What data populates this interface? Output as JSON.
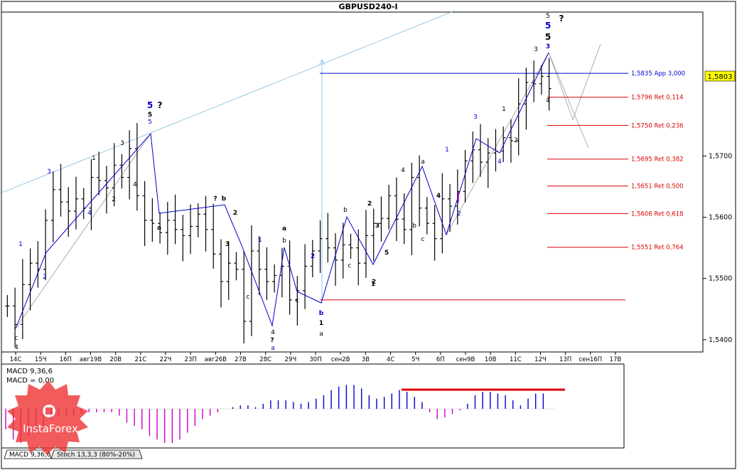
{
  "window_title": "GBPUSD240-I",
  "current_price_label": "1,5803",
  "colors": {
    "bull_bar": "#000000",
    "wave_blue": "#0000cc",
    "fib_red": "#dd0000",
    "channel": "#7ab8e0",
    "grey_line": "#999999",
    "macd_pos": "#0000cc",
    "macd_neg": "#cc00cc",
    "current_price_bg": "#ffff00"
  },
  "chart_data": {
    "type": "candlestick-ohlc",
    "symbol": "GBPUSD",
    "timeframe": "H4",
    "ylim": [
      1.538,
      1.5935
    ],
    "y_ticks": [
      "1,5400",
      "1,5500",
      "1,5600",
      "1,5700"
    ],
    "y_tick_values": [
      1.54,
      1.55,
      1.56,
      1.57
    ],
    "x_tick_labels": [
      "14С",
      "15Ч",
      "16П",
      "авг19В",
      "20В",
      "21С",
      "22Ч",
      "23П",
      "авг26В",
      "27В",
      "28С",
      "29Ч",
      "30П",
      "сен2В",
      "3В",
      "4С",
      "5Ч",
      "6П",
      "сен9В",
      "10В",
      "11С",
      "12Ч",
      "13П",
      "сен16П",
      "17В"
    ],
    "price_path": [
      1.5455,
      1.5425,
      1.549,
      1.5525,
      1.5515,
      1.5595,
      1.5645,
      1.5625,
      1.561,
      1.563,
      1.5615,
      1.5665,
      1.566,
      1.5648,
      1.5685,
      1.5665,
      1.5712,
      1.5635,
      1.5595,
      1.559,
      1.5575,
      1.5595,
      1.558,
      1.557,
      1.5585,
      1.5605,
      1.558,
      1.554,
      1.5495,
      1.5525,
      1.5515,
      1.543,
      1.5545,
      1.5515,
      1.5495,
      1.5505,
      1.552,
      1.5465,
      1.548,
      1.552,
      1.5545,
      1.5565,
      1.555,
      1.553,
      1.5555,
      1.555,
      1.5525,
      1.557,
      1.559,
      1.5598,
      1.5635,
      1.5597,
      1.558,
      1.5665,
      1.5615,
      1.559,
      1.5565,
      1.563,
      1.5618,
      1.5642,
      1.5692,
      1.571,
      1.569,
      1.5705,
      1.5708,
      1.573,
      1.5725,
      1.5785,
      1.582,
      1.5818,
      1.583,
      1.581
    ],
    "current_price": 1.5803,
    "fib_levels": [
      {
        "label": "1,5835 App 3,000",
        "value": 1.5835
      },
      {
        "label": "1,5796 Ret 0,114",
        "value": 1.5796
      },
      {
        "label": "1,5750 Ret 0,236",
        "value": 1.575
      },
      {
        "label": "1,5695 Ret 0,382",
        "value": 1.5695
      },
      {
        "label": "1,5651 Ret 0,500",
        "value": 1.5651
      },
      {
        "label": "1,5606 Ret 0,618",
        "value": 1.5606
      },
      {
        "label": "1,5551 Ret 0,764",
        "value": 1.5551
      }
    ],
    "support_level": 1.5465,
    "wave_labels": [
      {
        "text": "1",
        "color": "blue"
      },
      {
        "text": "2",
        "color": "blue"
      },
      {
        "text": "3",
        "color": "blue"
      },
      {
        "text": "4",
        "color": "blue"
      },
      {
        "text": "5",
        "color": "blue"
      },
      {
        "text": "?",
        "color": "black"
      },
      {
        "text": "5",
        "color": "black"
      },
      {
        "text": "5",
        "color": "blue"
      },
      {
        "text": "1",
        "color": "black"
      },
      {
        "text": "2",
        "color": "black"
      },
      {
        "text": "3",
        "color": "black"
      },
      {
        "text": "4",
        "color": "black"
      },
      {
        "text": "c",
        "color": "black"
      },
      {
        "text": "4",
        "color": "black"
      },
      {
        "text": "a",
        "color": "black"
      },
      {
        "text": "?",
        "color": "black"
      },
      {
        "text": "b",
        "color": "black"
      },
      {
        "text": "2",
        "color": "black"
      },
      {
        "text": "3",
        "color": "black"
      },
      {
        "text": "c",
        "color": "black"
      },
      {
        "text": "4",
        "color": "black"
      },
      {
        "text": "?",
        "color": "black"
      },
      {
        "text": "a",
        "color": "blue"
      },
      {
        "text": "1",
        "color": "blue"
      },
      {
        "text": "a",
        "color": "black"
      },
      {
        "text": "b",
        "color": "black"
      },
      {
        "text": "c",
        "color": "black"
      },
      {
        "text": "2",
        "color": "blue"
      },
      {
        "text": "b",
        "color": "blue"
      },
      {
        "text": "1",
        "color": "black"
      },
      {
        "text": "a",
        "color": "black"
      },
      {
        "text": "b",
        "color": "black"
      },
      {
        "text": "c",
        "color": "black"
      },
      {
        "text": "2",
        "color": "black"
      },
      {
        "text": "1",
        "color": "black"
      },
      {
        "text": "2",
        "color": "black"
      },
      {
        "text": "3",
        "color": "black"
      },
      {
        "text": "5",
        "color": "black"
      },
      {
        "text": "4",
        "color": "black"
      },
      {
        "text": "a",
        "color": "black"
      },
      {
        "text": "b",
        "color": "black"
      },
      {
        "text": "c",
        "color": "black"
      },
      {
        "text": "4",
        "color": "black"
      },
      {
        "text": "1",
        "color": "blue"
      },
      {
        "text": "2",
        "color": "blue"
      },
      {
        "text": "3",
        "color": "blue"
      },
      {
        "text": "4",
        "color": "blue"
      },
      {
        "text": "1",
        "color": "black"
      },
      {
        "text": "2",
        "color": "black"
      },
      {
        "text": "3",
        "color": "black"
      },
      {
        "text": "4",
        "color": "black"
      },
      {
        "text": "5",
        "color": "black"
      },
      {
        "text": "5",
        "color": "blue"
      },
      {
        "text": "5",
        "color": "black"
      },
      {
        "text": "3",
        "color": "blue"
      },
      {
        "text": "?",
        "color": "black"
      }
    ]
  },
  "indicator": {
    "macd_label": "MACD 9,36,6",
    "macd_value": "MACD = 0,00",
    "macd_histogram": [
      -0.6,
      -0.9,
      -1.0,
      -0.8,
      -0.7,
      -0.5,
      -0.3,
      -0.2,
      -0.2,
      -0.2,
      -0.15,
      -0.1,
      -0.1,
      -0.1,
      -0.1,
      -0.2,
      -0.4,
      -0.5,
      -0.6,
      -0.8,
      -0.9,
      -1.0,
      -1.0,
      -0.9,
      -0.7,
      -0.5,
      -0.3,
      -0.2,
      -0.1,
      0.0,
      0.05,
      0.1,
      0.1,
      0.05,
      0.15,
      0.25,
      0.25,
      0.25,
      0.2,
      0.15,
      0.2,
      0.3,
      0.4,
      0.55,
      0.65,
      0.7,
      0.7,
      0.6,
      0.4,
      0.3,
      0.35,
      0.45,
      0.55,
      0.5,
      0.35,
      0.2,
      -0.1,
      -0.3,
      -0.25,
      -0.15,
      -0.05,
      0.15,
      0.4,
      0.5,
      0.5,
      0.45,
      0.4,
      0.25,
      0.1,
      0.3,
      0.45,
      0.45
    ]
  },
  "tabs": [
    {
      "label": "MACD 9,36,6"
    },
    {
      "label": "Stoch 13,3,3 (80%-20%)"
    }
  ],
  "watermark": "InstaForex"
}
